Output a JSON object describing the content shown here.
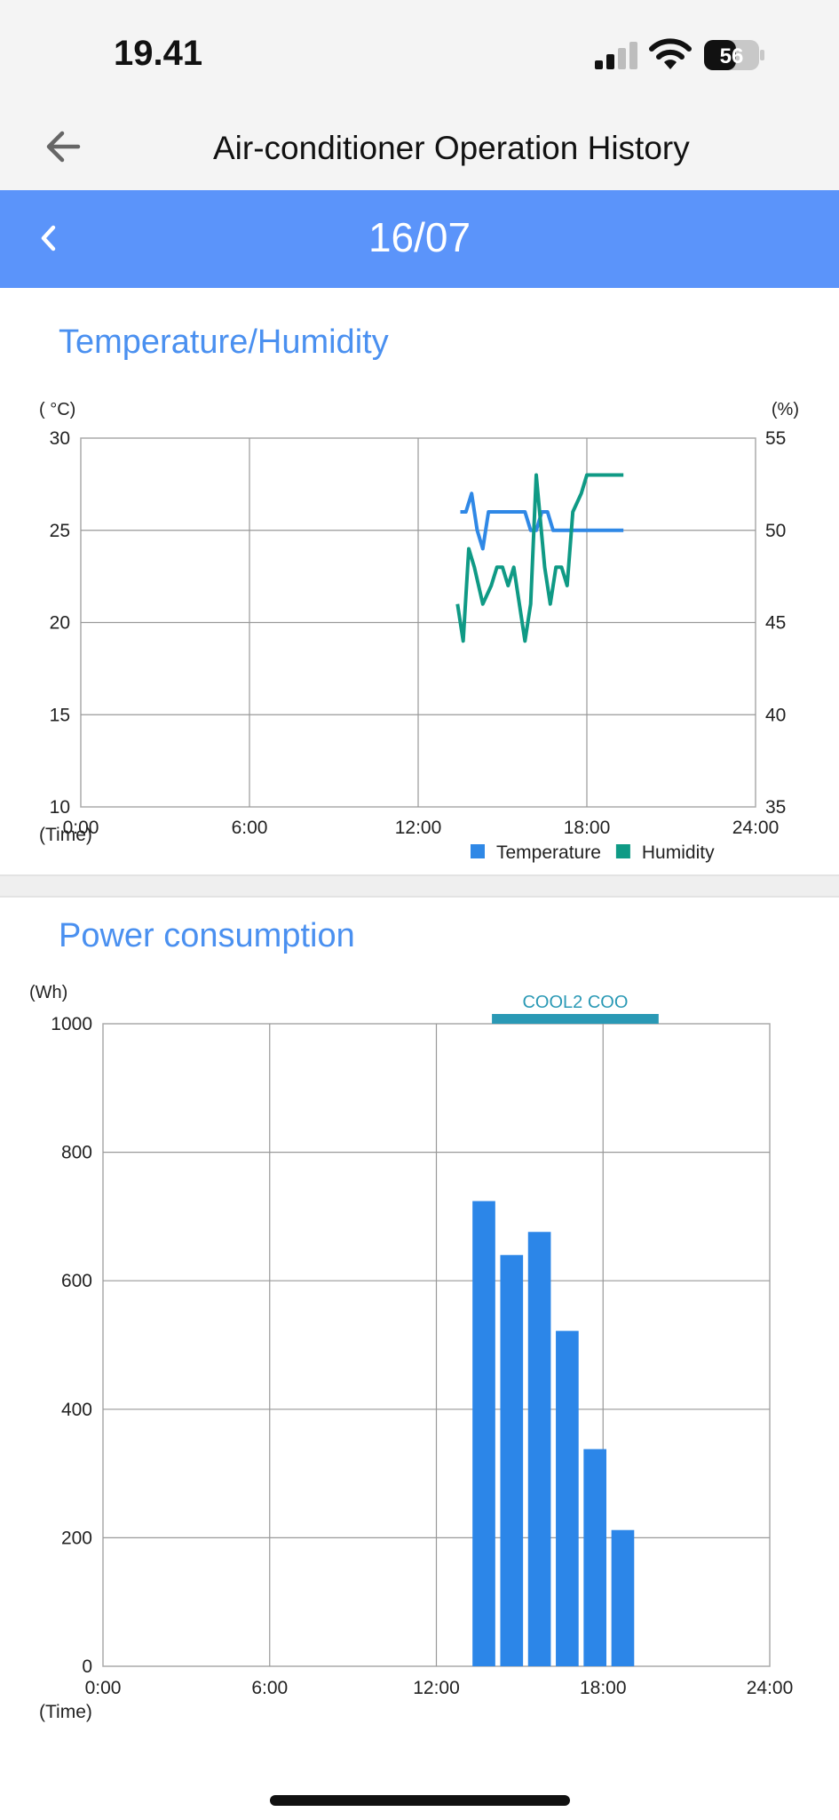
{
  "status_bar": {
    "time": "19.41",
    "battery": "56"
  },
  "header": {
    "title": "Air-conditioner Operation History"
  },
  "date_bar": {
    "date": "16/07"
  },
  "temp_section": {
    "title": "Temperature/Humidity"
  },
  "power_section": {
    "title": "Power consumption"
  },
  "colors": {
    "temperature": "#2f88e6",
    "humidity": "#0f9a85",
    "bar": "#2c86e8",
    "mode": "#2a99b5",
    "accent": "#5b94fa"
  },
  "chart_data": [
    {
      "type": "line",
      "left_unit": "( °C)",
      "right_unit": "(%)",
      "x_unit": "(Time)",
      "x_ticks": [
        "0:00",
        "6:00",
        "12:00",
        "18:00",
        "24:00"
      ],
      "y_left_ticks": [
        "30",
        "25",
        "20",
        "15",
        "10"
      ],
      "y_right_ticks": [
        "55",
        "50",
        "45",
        "40",
        "35"
      ],
      "x_range_hours": [
        0,
        24
      ],
      "y_left_range": [
        10,
        30
      ],
      "y_right_range": [
        35,
        55
      ],
      "grid": true,
      "legend_position": "bottom-right",
      "series": [
        {
          "name": "Temperature",
          "axis": "left",
          "x": [
            13.5,
            13.7,
            13.9,
            14.1,
            14.3,
            14.5,
            14.7,
            15.0,
            15.4,
            15.8,
            16.0,
            16.2,
            16.4,
            16.6,
            16.8,
            17.0,
            17.5,
            18.0,
            18.5,
            19.0,
            19.3
          ],
          "y": [
            26,
            26,
            27,
            25,
            24,
            26,
            26,
            26,
            26,
            26,
            25,
            25,
            26,
            26,
            25,
            25,
            25,
            25,
            25,
            25,
            25
          ]
        },
        {
          "name": "Humidity",
          "axis": "right",
          "x": [
            13.4,
            13.6,
            13.8,
            14.0,
            14.3,
            14.6,
            14.8,
            15.0,
            15.2,
            15.4,
            15.8,
            16.0,
            16.2,
            16.5,
            16.7,
            16.9,
            17.1,
            17.3,
            17.5,
            17.8,
            18.0,
            18.5,
            19.0,
            19.3
          ],
          "y": [
            46,
            44,
            49,
            48,
            46,
            47,
            48,
            48,
            47,
            48,
            44,
            46,
            53,
            48,
            46,
            48,
            48,
            47,
            51,
            52,
            53,
            53,
            53,
            53
          ]
        }
      ]
    },
    {
      "type": "bar",
      "y_unit": "(Wh)",
      "x_unit": "(Time)",
      "x_ticks": [
        "0:00",
        "6:00",
        "12:00",
        "18:00",
        "24:00"
      ],
      "y_ticks": [
        "1000",
        "800",
        "600",
        "400",
        "200",
        "0"
      ],
      "x_range_hours": [
        0,
        24
      ],
      "ylim": [
        0,
        1000
      ],
      "grid": true,
      "mode_label": "COOL2 COO",
      "mode_hours": [
        14,
        20
      ],
      "categories": [
        "13:00-14:00",
        "14:00-15:00",
        "15:00-16:00",
        "16:00-17:00",
        "17:00-18:00",
        "18:00-19:00"
      ],
      "bar_start_hours": [
        13.3,
        14.3,
        15.3,
        16.3,
        17.3,
        18.3
      ],
      "values": [
        724,
        640,
        676,
        522,
        338,
        212
      ]
    }
  ]
}
